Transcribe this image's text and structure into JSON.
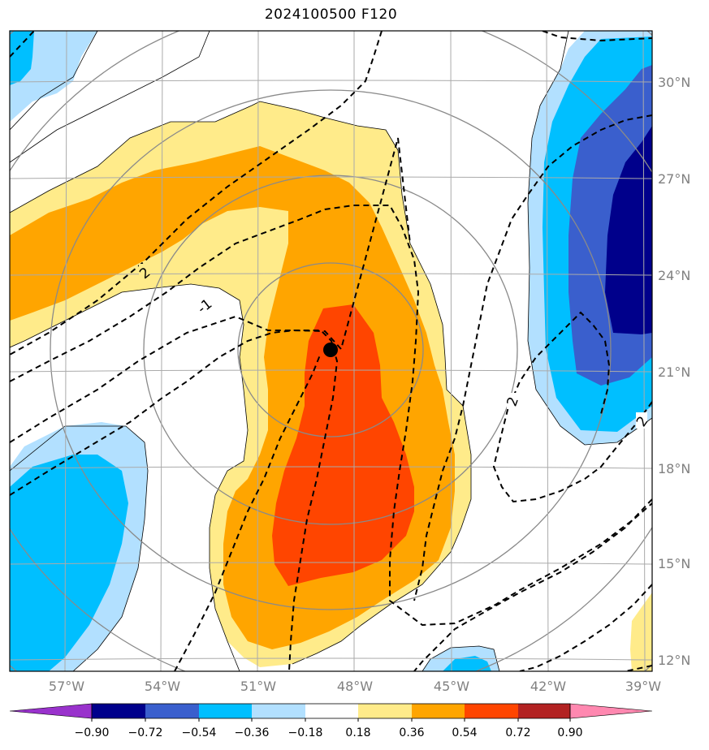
{
  "title": "2024100500 F120",
  "map": {
    "lon_range": [
      -59,
      -39
    ],
    "lat_range": [
      11.5,
      31.5
    ],
    "lon_ticks": [
      "57°W",
      "54°W",
      "51°W",
      "48°W",
      "45°W",
      "42°W",
      "39°W"
    ],
    "lat_ticks": [
      "30°N",
      "27°N",
      "24°N",
      "21°N",
      "18°N",
      "15°N",
      "12°N"
    ],
    "storm_center": {
      "lon": -48.8,
      "lat": 21.6
    },
    "contour_labels": [
      "2",
      "-1",
      "2",
      "2"
    ]
  },
  "colorbar": {
    "ticks": [
      "−0.90",
      "−0.72",
      "−0.54",
      "−0.36",
      "−0.18",
      "0.18",
      "0.36",
      "0.54",
      "0.72",
      "0.90"
    ],
    "colors": [
      "#9932cc",
      "#00008b",
      "#3a5fcd",
      "#00bfff",
      "#b2e0ff",
      "#ffffff",
      "#ffeb8a",
      "#ffa500",
      "#ff4500",
      "#b22222",
      "#ff88b0"
    ]
  }
}
